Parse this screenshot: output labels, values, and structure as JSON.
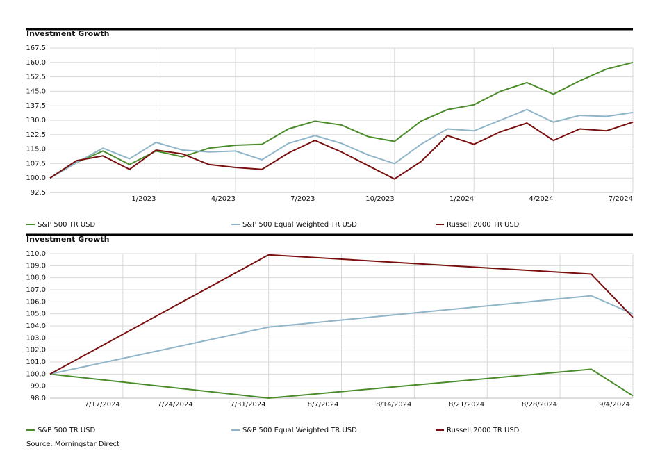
{
  "chart_data": [
    {
      "type": "line",
      "title": "Investment Growth",
      "categories": [
        null,
        null,
        null,
        null,
        "1/2023",
        null,
        null,
        "4/2023",
        null,
        null,
        "7/2023",
        null,
        null,
        "10/2023",
        null,
        null,
        "1/2024",
        null,
        null,
        "4/2024",
        null,
        null,
        "7/2024"
      ],
      "series": [
        {
          "name": "S&P 500 TR USD",
          "color": "#4a8c2a",
          "values": [
            100,
            108,
            114,
            107,
            114,
            111,
            115.5,
            117,
            117.5,
            125.5,
            129.5,
            127.5,
            121.5,
            119,
            129.5,
            135.5,
            138,
            145,
            149.5,
            143.5,
            150.5,
            156.5,
            160
          ]
        },
        {
          "name": "S&P 500 Equal Weighted TR USD",
          "color": "#8fb5c8",
          "values": [
            100,
            108,
            115.5,
            110,
            118.5,
            114.5,
            113.5,
            114,
            109.5,
            118,
            122,
            118,
            112,
            107.5,
            117.5,
            125.5,
            124.5,
            130,
            135.5,
            129,
            132.5,
            132,
            134
          ]
        },
        {
          "name": "Russell 2000 TR USD",
          "color": "#7a0f0f",
          "values": [
            100,
            109,
            111.5,
            104.5,
            114.5,
            112.5,
            107,
            105.5,
            104.5,
            113,
            119.5,
            113.5,
            106.5,
            99.5,
            108.5,
            122,
            117.5,
            124,
            128.5,
            119.5,
            125.5,
            124.5,
            129
          ]
        }
      ],
      "ylim": [
        92.5,
        167.5
      ],
      "yticks": [
        92.5,
        {
          "value": 100,
          "label": "100.0"
        },
        107.5,
        {
          "value": 115,
          "label": "115.0"
        },
        122.5,
        {
          "value": 130,
          "label": "130.0"
        },
        137.5,
        {
          "value": 145,
          "label": "145.0"
        },
        152.5,
        {
          "value": 160,
          "label": "160.0"
        },
        167.5
      ],
      "grid": true
    },
    {
      "type": "line",
      "title": "Investment Growth",
      "x": [
        "7/10/2024",
        "7/31/2024",
        "8/31/2024",
        "9/4/2024"
      ],
      "series": [
        {
          "name": "S&P 500 TR USD",
          "color": "#4a8c2a",
          "values": [
            100,
            98.0,
            100.4,
            98.2
          ]
        },
        {
          "name": "S&P 500 Equal Weighted TR USD",
          "color": "#8fb5c8",
          "values": [
            100,
            103.9,
            106.5,
            105.0
          ]
        },
        {
          "name": "Russell 2000 TR USD",
          "color": "#7a0f0f",
          "values": [
            100,
            109.9,
            108.3,
            104.7
          ]
        }
      ],
      "xlim": [
        "7/10/2024",
        "9/4/2024"
      ],
      "xticks": [
        "7/17/2024",
        "7/24/2024",
        "7/31/2024",
        "8/7/2024",
        "8/14/2024",
        "8/21/2024",
        "8/28/2024",
        "9/4/2024"
      ],
      "ylim": [
        98,
        110
      ],
      "yticks": [
        {
          "value": 98,
          "label": "98.0"
        },
        {
          "value": 99,
          "label": "99.0"
        },
        {
          "value": 100,
          "label": "100.0"
        },
        {
          "value": 101,
          "label": "101.0"
        },
        {
          "value": 102,
          "label": "102.0"
        },
        {
          "value": 103,
          "label": "103.0"
        },
        {
          "value": 104,
          "label": "104.0"
        },
        {
          "value": 105,
          "label": "105.0"
        },
        {
          "value": 106,
          "label": "106.0"
        },
        {
          "value": 107,
          "label": "107.0"
        },
        {
          "value": 108,
          "label": "108.0"
        },
        {
          "value": 109,
          "label": "109.0"
        },
        {
          "value": 110,
          "label": "110.0"
        }
      ],
      "grid": true
    }
  ],
  "source": "Source: Morningstar Direct"
}
